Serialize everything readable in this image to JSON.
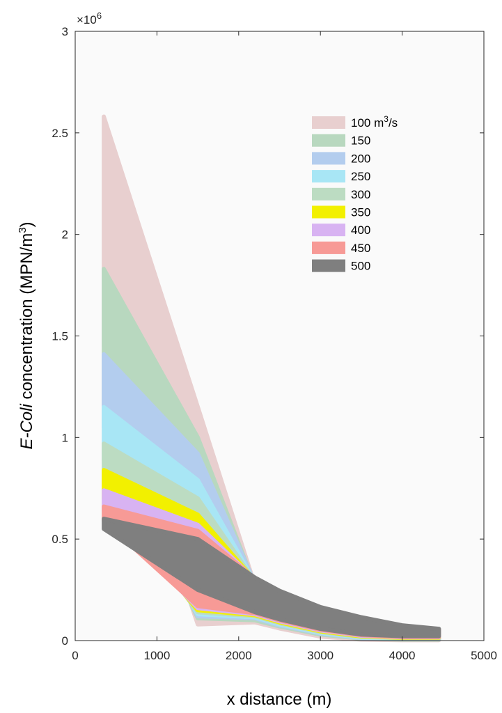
{
  "chart_data": {
    "type": "scatter",
    "title": "",
    "xlabel": "x distance (m)",
    "ylabel_italic": "E-Coli",
    "ylabel_rest": " concentration (MPN/m",
    "ylabel_sup": "3",
    "ylabel_close": ")",
    "xlim": [
      0,
      5000
    ],
    "ylim": [
      0,
      3000000
    ],
    "xticks": [
      "0",
      "1000",
      "2000",
      "3000",
      "4000",
      "5000"
    ],
    "yticks": [
      "0",
      "0.5",
      "1",
      "1.5",
      "2",
      "2.5",
      "3"
    ],
    "y_exponent_base": "×10",
    "y_exponent_power": "6",
    "grid": false,
    "legend_position": "top-right",
    "legend_unit": " m",
    "legend_unit_sup": "3",
    "legend_unit_tail": "/s",
    "series": [
      {
        "name": "100",
        "color": "#e8cfcf",
        "x": [
          350,
          1500,
          2200,
          2500,
          3000,
          3500,
          4000,
          4450
        ],
        "y_top": [
          2580000,
          1150000,
          270000,
          200000,
          120000,
          70000,
          40000,
          30000
        ],
        "y_bottom": [
          1450000,
          80000,
          90000,
          60000,
          20000,
          5000,
          2000,
          2000
        ]
      },
      {
        "name": "150",
        "color": "#b8d8bf",
        "x": [
          350,
          1500,
          2200,
          2500,
          3000,
          3500,
          4000,
          4450
        ],
        "y_top": [
          1830000,
          1000000,
          270000,
          210000,
          130000,
          80000,
          50000,
          35000
        ],
        "y_bottom": [
          1100000,
          110000,
          100000,
          70000,
          30000,
          10000,
          5000,
          5000
        ]
      },
      {
        "name": "200",
        "color": "#b3cdee",
        "x": [
          350,
          1500,
          2200,
          2500,
          3000,
          3500,
          4000,
          4450
        ],
        "y_top": [
          1410000,
          920000,
          280000,
          215000,
          135000,
          85000,
          55000,
          40000
        ],
        "y_bottom": [
          1050000,
          120000,
          110000,
          75000,
          35000,
          12000,
          8000,
          8000
        ]
      },
      {
        "name": "250",
        "color": "#a8e6f5",
        "x": [
          350,
          1500,
          2200,
          2500,
          3000,
          3500,
          4000,
          4450
        ],
        "y_top": [
          1150000,
          790000,
          285000,
          220000,
          140000,
          90000,
          58000,
          43000
        ],
        "y_bottom": [
          890000,
          130000,
          115000,
          80000,
          38000,
          15000,
          10000,
          10000
        ]
      },
      {
        "name": "300",
        "color": "#bcdcc2",
        "x": [
          350,
          1500,
          2200,
          2500,
          3000,
          3500,
          4000,
          4450
        ],
        "y_top": [
          970000,
          700000,
          290000,
          225000,
          145000,
          95000,
          62000,
          46000
        ],
        "y_bottom": [
          760000,
          140000,
          120000,
          85000,
          42000,
          18000,
          12000,
          12000
        ]
      },
      {
        "name": "350",
        "color": "#f2f000",
        "x": [
          350,
          1500,
          2200,
          2500,
          3000,
          3500,
          4000,
          4450
        ],
        "y_top": [
          840000,
          620000,
          295000,
          230000,
          150000,
          100000,
          65000,
          49000
        ],
        "y_bottom": [
          700000,
          150000,
          125000,
          90000,
          46000,
          21000,
          14000,
          14000
        ]
      },
      {
        "name": "400",
        "color": "#d8b3f2",
        "x": [
          350,
          1500,
          2200,
          2500,
          3000,
          3500,
          4000,
          4450
        ],
        "y_top": [
          740000,
          570000,
          300000,
          235000,
          155000,
          105000,
          68000,
          52000
        ],
        "y_bottom": [
          640000,
          160000,
          130000,
          95000,
          50000,
          24000,
          16000,
          16000
        ]
      },
      {
        "name": "450",
        "color": "#f79a96",
        "x": [
          350,
          1500,
          2200,
          2500,
          3000,
          3500,
          4000,
          4450
        ],
        "y_top": [
          660000,
          540000,
          305000,
          240000,
          160000,
          110000,
          71000,
          55000
        ],
        "y_bottom": [
          590000,
          170000,
          135000,
          100000,
          54000,
          27000,
          18000,
          18000
        ]
      },
      {
        "name": "500",
        "color": "#7f7f7f",
        "x": [
          350,
          1500,
          2200,
          2500,
          3000,
          3500,
          4000,
          4450
        ],
        "y_top": [
          600000,
          500000,
          310000,
          245000,
          165000,
          115000,
          75000,
          58000
        ],
        "y_bottom": [
          550000,
          250000,
          140000,
          105000,
          58000,
          30000,
          22000,
          22000
        ]
      }
    ]
  }
}
